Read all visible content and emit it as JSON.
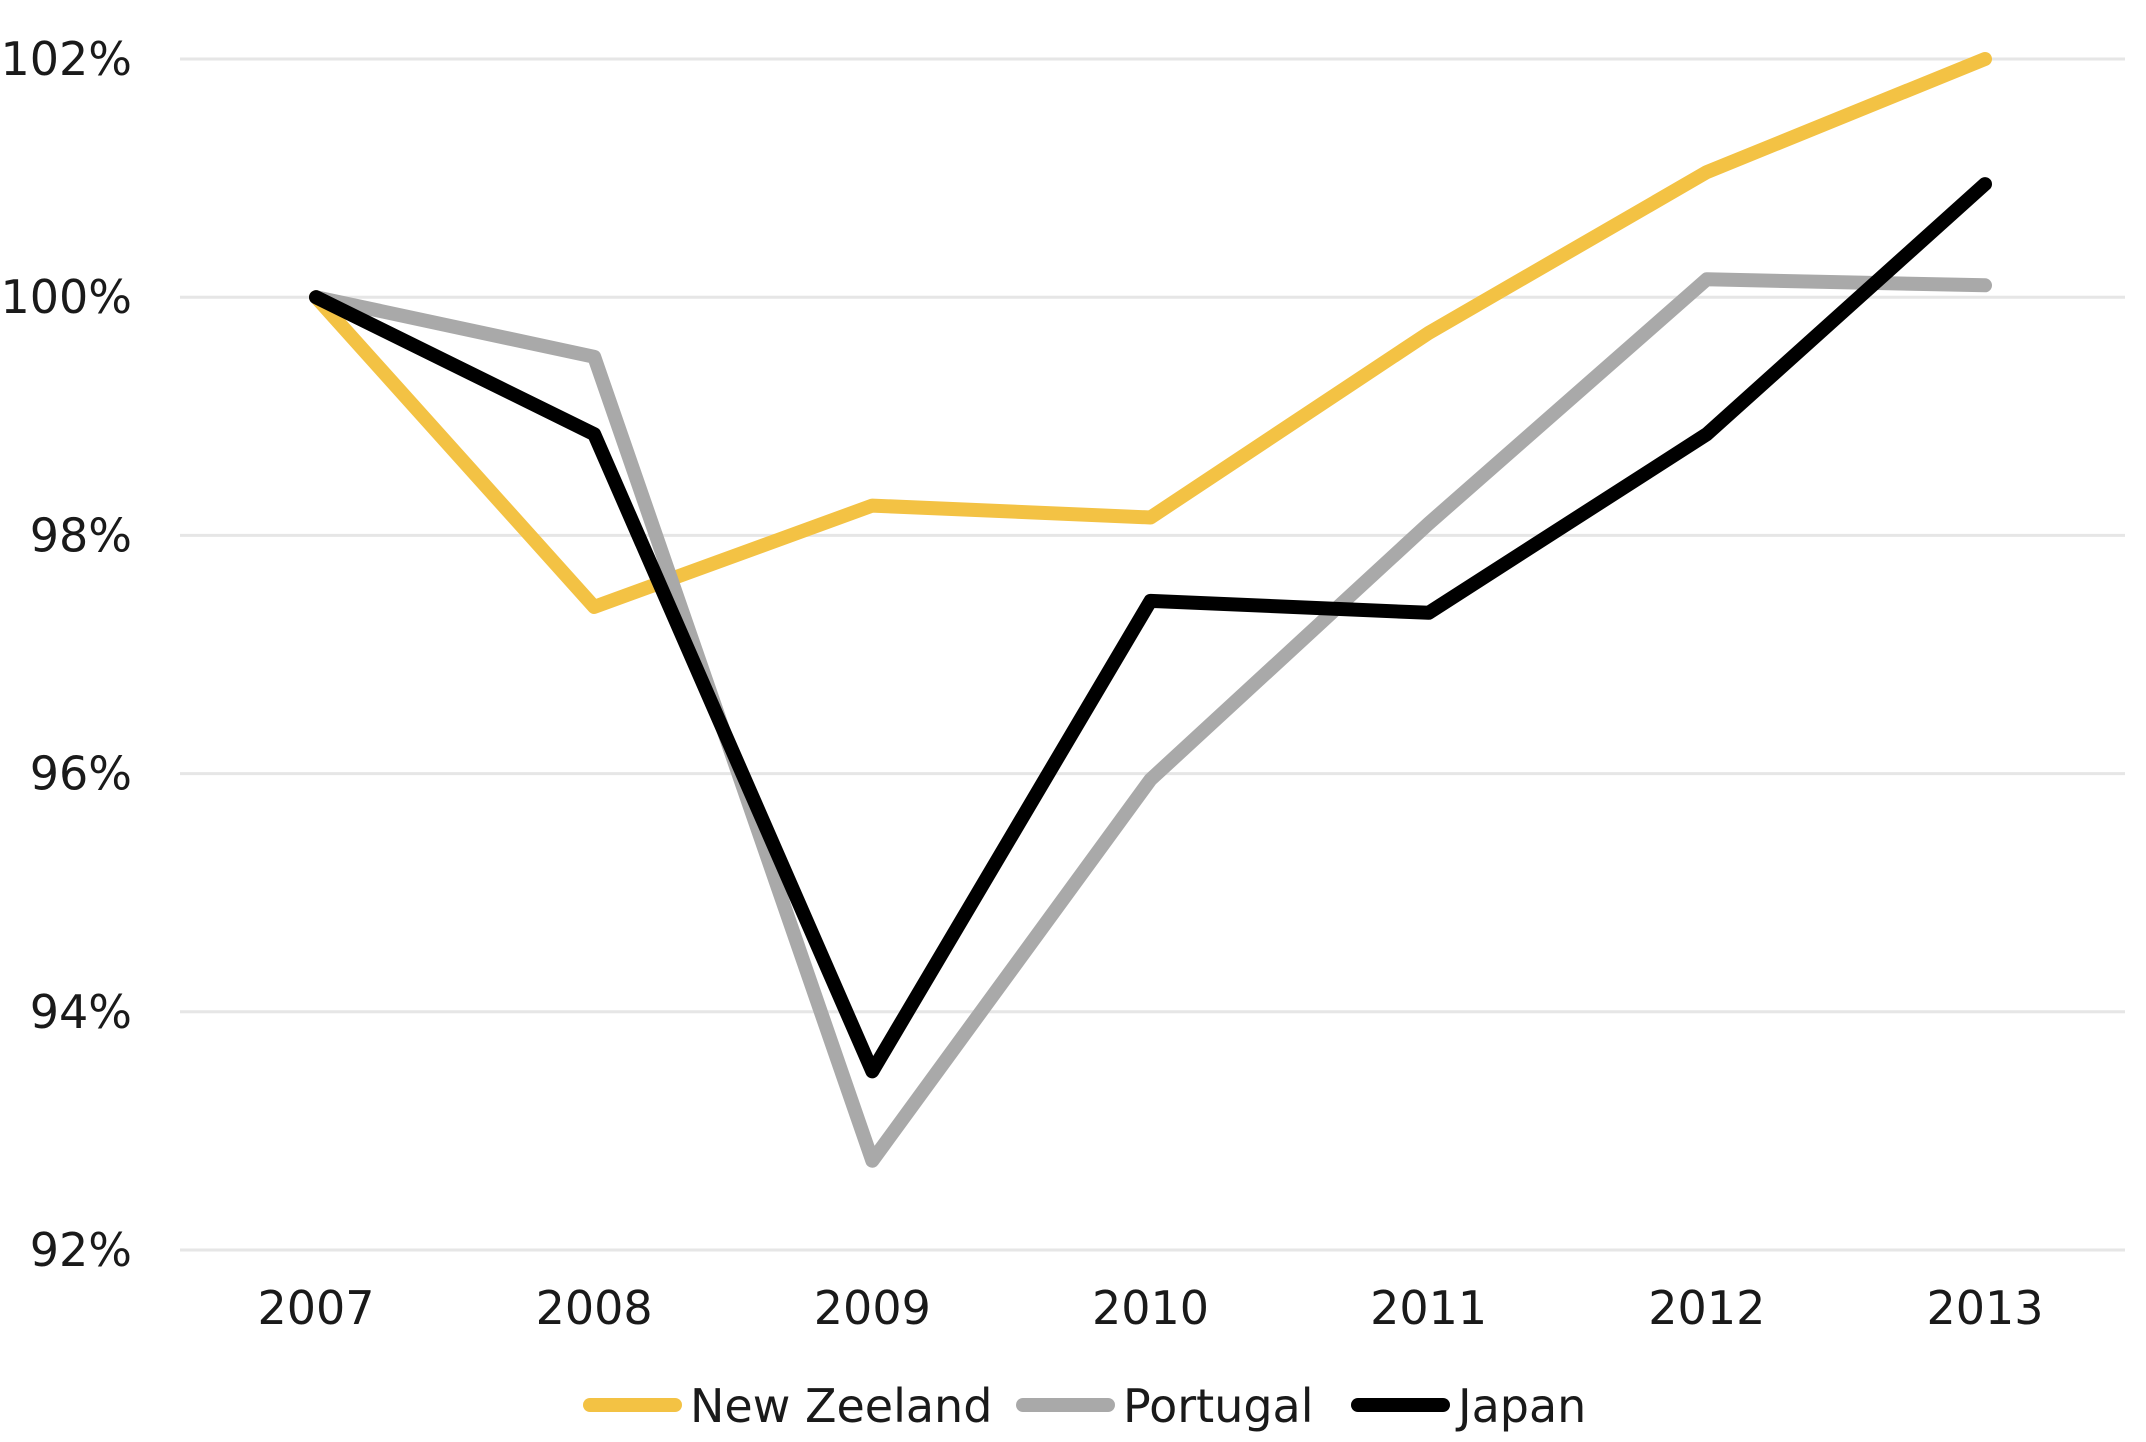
{
  "chart_data": {
    "type": "line",
    "title": "",
    "xlabel": "",
    "ylabel": "",
    "categories": [
      "2007",
      "2008",
      "2009",
      "2010",
      "2011",
      "2012",
      "2013"
    ],
    "y_ticks": [
      "92%",
      "94%",
      "96%",
      "98%",
      "100%",
      "102%"
    ],
    "y_tick_values": [
      92,
      94,
      96,
      98,
      100,
      102
    ],
    "ylim": [
      92,
      102
    ],
    "grid": true,
    "legend_position": "bottom",
    "series": [
      {
        "name": "New Zeeland",
        "color": "#F3C244",
        "values": [
          100.0,
          97.4,
          98.25,
          98.15,
          99.7,
          101.05,
          102.0
        ]
      },
      {
        "name": "Portugal",
        "color": "#A9A9A9",
        "values": [
          100.0,
          99.5,
          92.75,
          95.95,
          98.1,
          100.15,
          100.1
        ]
      },
      {
        "name": "Japan",
        "color": "#000000",
        "values": [
          100.0,
          98.85,
          93.5,
          97.45,
          97.35,
          98.85,
          100.95
        ]
      }
    ]
  }
}
